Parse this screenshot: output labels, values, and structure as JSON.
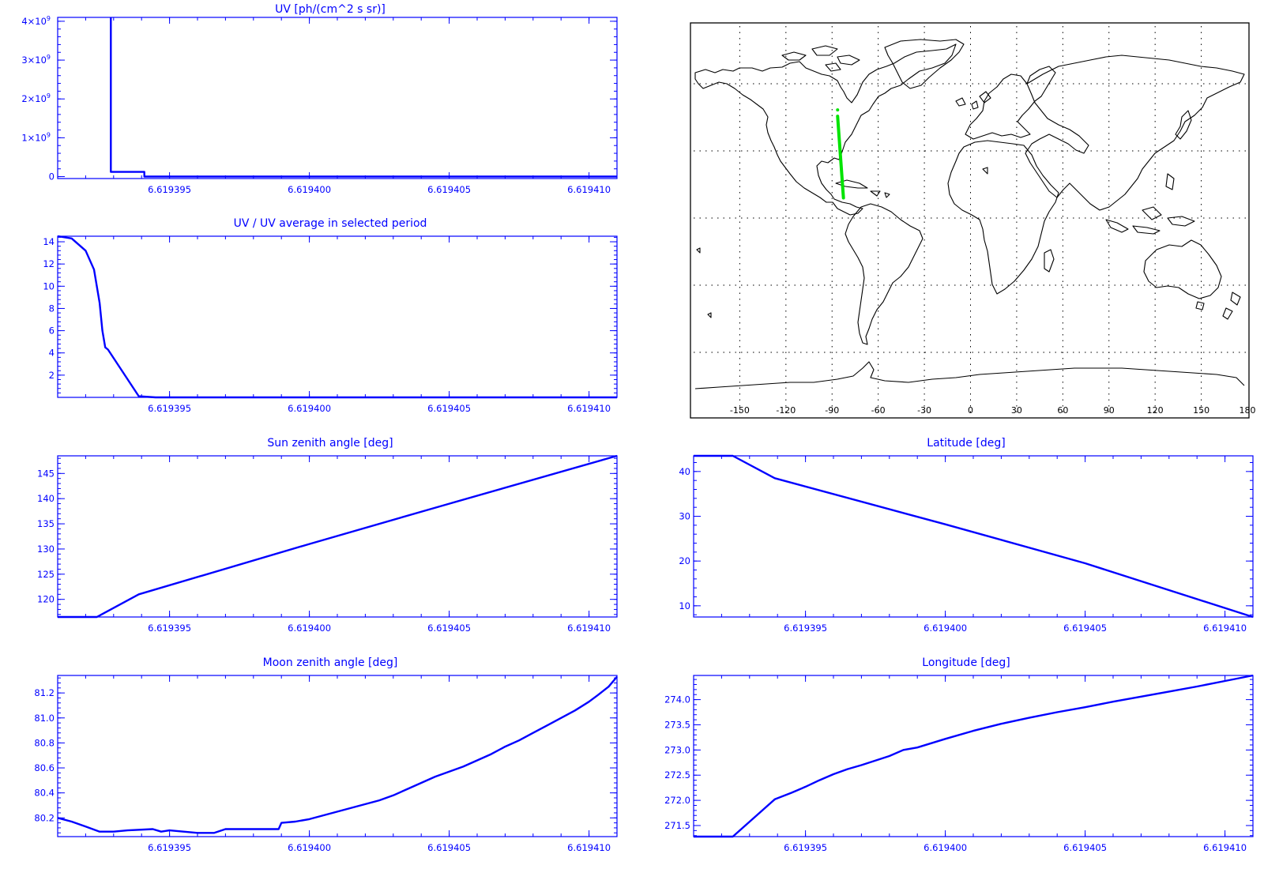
{
  "chart_data": [
    {
      "id": "uv",
      "type": "line",
      "title": "UV [ph/(cm^2 s sr)]",
      "xlim": [
        6.619391,
        6.619411
      ],
      "x_ticks": [
        6.619395,
        6.6194,
        6.619405,
        6.61941
      ],
      "x_tick_labels": [
        "6.619395",
        "6.619400",
        "6.619405",
        "6.619410"
      ],
      "ylim": [
        -50000000,
        4100000000
      ],
      "y_ticks": [
        0,
        1000000000,
        2000000000,
        3000000000,
        4000000000
      ],
      "y_tick_labels": [
        "0",
        "1×10⁹",
        "2×10⁹",
        "3×10⁹",
        "4×10⁹"
      ],
      "series": [
        {
          "x": [
            6.6193929,
            6.6193929,
            6.6193941,
            6.6193941,
            6.619411
          ],
          "y": [
            4100000000,
            120000000,
            120000000,
            0,
            0
          ]
        }
      ]
    },
    {
      "id": "uv_ratio",
      "type": "line",
      "title": "UV / UV average in selected period",
      "xlim": [
        6.619391,
        6.619411
      ],
      "x_ticks": [
        6.619395,
        6.6194,
        6.619405,
        6.61941
      ],
      "x_tick_labels": [
        "6.619395",
        "6.619400",
        "6.619405",
        "6.619410"
      ],
      "ylim": [
        0,
        14.5
      ],
      "y_ticks": [
        2,
        4,
        6,
        8,
        10,
        12,
        14
      ],
      "y_tick_labels": [
        "2",
        "4",
        "6",
        "8",
        "10",
        "12",
        "14"
      ],
      "series": [
        {
          "x": [
            6.619391,
            6.6193915,
            6.619392,
            6.6193923,
            6.6193925,
            6.6193926,
            6.6193927,
            6.6193928,
            6.6193939,
            6.6193945,
            6.619411
          ],
          "y": [
            14.5,
            14.3,
            13.2,
            11.5,
            8.5,
            6.0,
            4.5,
            4.3,
            0.1,
            0.0,
            0.0
          ]
        }
      ]
    },
    {
      "id": "sun_zenith",
      "type": "line",
      "title": "Sun zenith angle [deg]",
      "xlim": [
        6.619391,
        6.619411
      ],
      "x_ticks": [
        6.619395,
        6.6194,
        6.619405,
        6.61941
      ],
      "x_tick_labels": [
        "6.619395",
        "6.619400",
        "6.619405",
        "6.619410"
      ],
      "ylim": [
        116.5,
        148.5
      ],
      "y_ticks": [
        120,
        125,
        130,
        135,
        140,
        145
      ],
      "y_tick_labels": [
        "120",
        "125",
        "130",
        "135",
        "140",
        "145"
      ],
      "series": [
        {
          "x": [
            6.619391,
            6.6193924,
            6.6193939,
            6.6194,
            6.619405,
            6.619411
          ],
          "y": [
            116.5,
            116.5,
            121,
            131,
            139,
            148.5
          ]
        }
      ]
    },
    {
      "id": "latitude",
      "type": "line",
      "title": "Latitude [deg]",
      "xlim": [
        6.619391,
        6.619411
      ],
      "x_ticks": [
        6.619395,
        6.6194,
        6.619405,
        6.61941
      ],
      "x_tick_labels": [
        "6.619395",
        "6.619400",
        "6.619405",
        "6.619410"
      ],
      "ylim": [
        7.5,
        43.5
      ],
      "y_ticks": [
        10,
        20,
        30,
        40
      ],
      "y_tick_labels": [
        "10",
        "20",
        "30",
        "40"
      ],
      "series": [
        {
          "x": [
            6.619391,
            6.6193924,
            6.6193939,
            6.6194,
            6.619405,
            6.619411
          ],
          "y": [
            43.5,
            43.5,
            38.5,
            28.2,
            19.5,
            7.5
          ]
        }
      ]
    },
    {
      "id": "moon_zenith",
      "type": "line",
      "title": "Moon zenith angle [deg]",
      "xlim": [
        6.619391,
        6.619411
      ],
      "x_ticks": [
        6.619395,
        6.6194,
        6.619405,
        6.61941
      ],
      "x_tick_labels": [
        "6.619395",
        "6.619400",
        "6.619405",
        "6.619410"
      ],
      "ylim": [
        80.05,
        81.34
      ],
      "y_ticks": [
        80.2,
        80.4,
        80.6,
        80.8,
        81.0,
        81.2
      ],
      "y_tick_labels": [
        "80.2",
        "80.4",
        "80.6",
        "80.8",
        "81.0",
        "81.2"
      ],
      "series": [
        {
          "x": [
            6.619391,
            6.6193915,
            6.619392,
            6.6193925,
            6.619393,
            6.6193935,
            6.6193944,
            6.6193947,
            6.619395,
            6.6193955,
            6.619396,
            6.6193966,
            6.619397,
            6.6193989,
            6.619399,
            6.6193995,
            6.6194,
            6.6194005,
            6.619401,
            6.6194015,
            6.619402,
            6.6194025,
            6.619403,
            6.6194035,
            6.619404,
            6.6194045,
            6.619405,
            6.6194055,
            6.619406,
            6.6194065,
            6.619407,
            6.6194075,
            6.619408,
            6.6194085,
            6.619409,
            6.6194095,
            6.61941,
            6.6194103,
            6.6194107,
            6.619411
          ],
          "y": [
            80.2,
            80.17,
            80.13,
            80.09,
            80.09,
            80.1,
            80.11,
            80.09,
            80.1,
            80.09,
            80.08,
            80.08,
            80.11,
            80.11,
            80.16,
            80.17,
            80.19,
            80.22,
            80.25,
            80.28,
            80.31,
            80.34,
            80.38,
            80.43,
            80.48,
            80.53,
            80.57,
            80.61,
            80.66,
            80.71,
            80.77,
            80.82,
            80.88,
            80.94,
            81.0,
            81.06,
            81.13,
            81.18,
            81.25,
            81.33
          ]
        }
      ]
    },
    {
      "id": "longitude",
      "type": "line",
      "title": "Longitude [deg]",
      "xlim": [
        6.619391,
        6.619411
      ],
      "x_ticks": [
        6.619395,
        6.6194,
        6.619405,
        6.61941
      ],
      "x_tick_labels": [
        "6.619395",
        "6.619400",
        "6.619405",
        "6.619410"
      ],
      "ylim": [
        271.28,
        274.48
      ],
      "y_ticks": [
        271.5,
        272.0,
        272.5,
        273.0,
        273.5,
        274.0
      ],
      "y_tick_labels": [
        "271.5",
        "272.0",
        "272.5",
        "273.0",
        "273.5",
        "274.0"
      ],
      "series": [
        {
          "x": [
            6.619391,
            6.6193924,
            6.6193939,
            6.6193945,
            6.619395,
            6.6193955,
            6.619396,
            6.6193965,
            6.619397,
            6.619398,
            6.6193985,
            6.619399,
            6.6194,
            6.619401,
            6.619402,
            6.619403,
            6.619404,
            6.619405,
            6.619406,
            6.619407,
            6.619408,
            6.619409,
            6.61941,
            6.619411
          ],
          "y": [
            271.28,
            271.28,
            272.02,
            272.15,
            272.27,
            272.4,
            272.52,
            272.62,
            272.7,
            272.88,
            273.0,
            273.05,
            273.22,
            273.38,
            273.52,
            273.64,
            273.75,
            273.85,
            273.96,
            274.06,
            274.16,
            274.26,
            274.37,
            274.48
          ]
        }
      ]
    }
  ],
  "map": {
    "x_tick_labels": [
      "-150",
      "-120",
      "-90",
      "-60",
      "-30",
      "0",
      "30",
      "60",
      "90",
      "120",
      "150",
      "180"
    ],
    "x_ticks": [
      -150,
      -120,
      -90,
      -60,
      -30,
      0,
      30,
      60,
      90,
      120,
      150,
      180
    ],
    "track": {
      "lon": [
        -86.4,
        -82.6
      ],
      "lat": [
        45.5,
        9.0
      ]
    },
    "colors": {
      "track": "#00e400",
      "coast": "#000000"
    }
  },
  "colors": {
    "axis": "#0000ff",
    "series": "#0000ff"
  }
}
